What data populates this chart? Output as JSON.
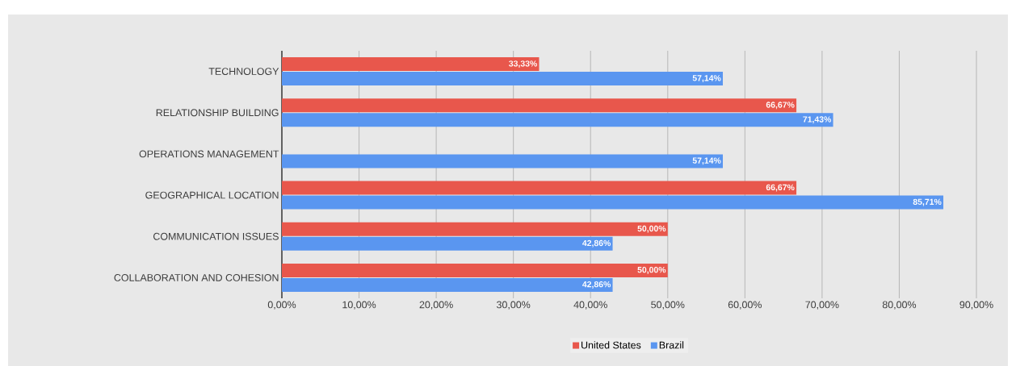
{
  "chart_data": {
    "type": "bar",
    "orientation": "horizontal",
    "categories": [
      "TECHNOLOGY",
      "RELATIONSHIP BUILDING",
      "OPERATIONS MANAGEMENT",
      "GEOGRAPHICAL LOCATION",
      "COMMUNICATION ISSUES",
      "COLLABORATION AND COHESION"
    ],
    "series": [
      {
        "name": "United States",
        "color": "#e8574c",
        "values": [
          33.33,
          66.67,
          null,
          66.67,
          50.0,
          50.0
        ],
        "value_labels": [
          "33,33%",
          "66,67%",
          null,
          "66,67%",
          "50,00%",
          "50,00%"
        ]
      },
      {
        "name": "Brazil",
        "color": "#5a96f0",
        "values": [
          57.14,
          71.43,
          57.14,
          85.71,
          42.86,
          42.86
        ],
        "value_labels": [
          "57,14%",
          "71,43%",
          "57,14%",
          "85,71%",
          "42,86%",
          "42,86%"
        ]
      }
    ],
    "xlim": [
      0,
      90
    ],
    "xticks": [
      {
        "value": 0,
        "label": "0,00%"
      },
      {
        "value": 10,
        "label": "10,00%"
      },
      {
        "value": 20,
        "label": "20,00%"
      },
      {
        "value": 30,
        "label": "30,00%"
      },
      {
        "value": 40,
        "label": "40,00%"
      },
      {
        "value": 50,
        "label": "50,00%"
      },
      {
        "value": 60,
        "label": "60,00%"
      },
      {
        "value": 70,
        "label": "70,00%"
      },
      {
        "value": 80,
        "label": "80,00%"
      },
      {
        "value": 90,
        "label": "90,00%"
      }
    ],
    "grid": "x",
    "legend": "bottom"
  }
}
